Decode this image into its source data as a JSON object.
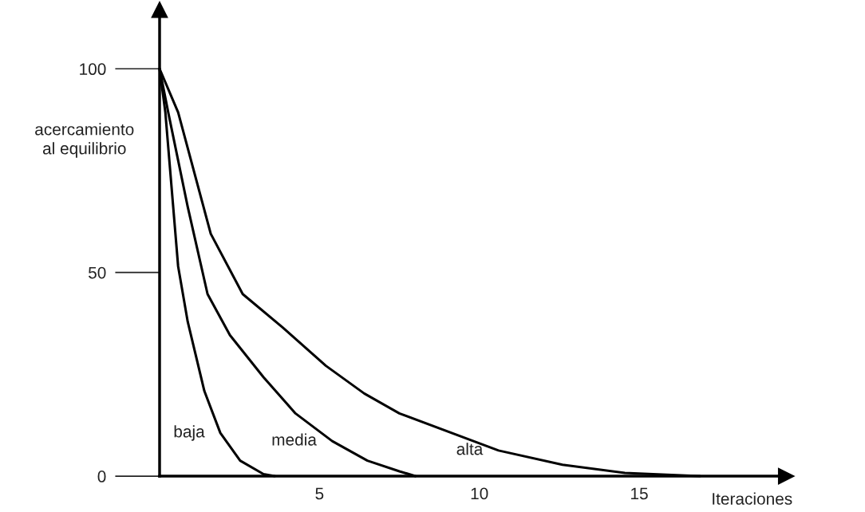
{
  "chart_data": {
    "type": "line",
    "xlabel": "Iteraciones",
    "ylabel": "acercamiento\nal equilibrio",
    "xlim": [
      0,
      19.6
    ],
    "ylim": [
      0,
      114.5
    ],
    "xticks": [
      5,
      10,
      15
    ],
    "yticks": [
      0,
      50,
      100
    ],
    "grid": false,
    "legend": false,
    "marker": "none",
    "line_style": "solid",
    "series": [
      {
        "name": "baja",
        "color": "#000000",
        "x": [
          0,
          0.18,
          0.58,
          0.88,
          1.4,
          1.9,
          2.52,
          3.25,
          3.6
        ],
        "values": [
          100,
          89.3,
          51.5,
          37.9,
          20.9,
          10.6,
          3.8,
          0.5,
          0
        ]
      },
      {
        "name": "media",
        "color": "#000000",
        "x": [
          0,
          0.27,
          0.88,
          1.5,
          2.2,
          3.25,
          4.25,
          5.4,
          6.5,
          7.5,
          8.0
        ],
        "values": [
          100,
          89.3,
          66.1,
          44.7,
          34.6,
          24.3,
          15.4,
          8.6,
          3.8,
          1.2,
          0
        ]
      },
      {
        "name": "alta",
        "color": "#000000",
        "x": [
          0,
          0.58,
          1.6,
          2.6,
          3.85,
          5.2,
          6.4,
          7.5,
          10.6,
          12.6,
          14.55,
          16.9
        ],
        "values": [
          100,
          89.3,
          59.5,
          44.7,
          36.5,
          27.1,
          20.3,
          15.4,
          6.3,
          2.8,
          0.8,
          0
        ]
      }
    ]
  }
}
